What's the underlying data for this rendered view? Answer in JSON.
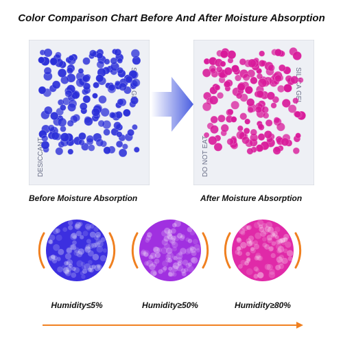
{
  "title": "Color Comparison Chart Before And After Moisture Absorption",
  "captions": {
    "before": "Before Moisture Absorption",
    "after": "After Moisture Absorption"
  },
  "humidity": [
    "Humidity≤5%",
    "Humidity≥50%",
    "Humidity≥80%"
  ],
  "packet_print": [
    "SILICA GEL",
    "DESICCANT",
    "DO NOT EAT"
  ],
  "colors": {
    "before_beads": "#2b2fd8",
    "after_beads": "#d81a9a",
    "arrow": "#5566dd",
    "accent_orange": "#f08020",
    "stage1": "#3c2fe0",
    "stage2": "#a030e0",
    "stage3": "#e02aa8"
  }
}
